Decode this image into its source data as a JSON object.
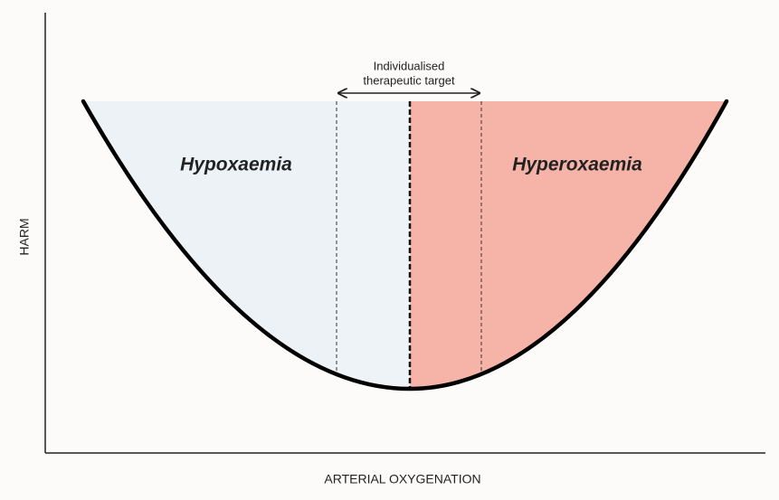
{
  "target_label": {
    "line1": "Individualised",
    "line2": "therapeutic target"
  },
  "regions": {
    "left": "Hypoxaemia",
    "right": "Hyperoxaemia"
  },
  "axes": {
    "y": "HARM",
    "x": "ARTERIAL OXYGENATION"
  }
}
